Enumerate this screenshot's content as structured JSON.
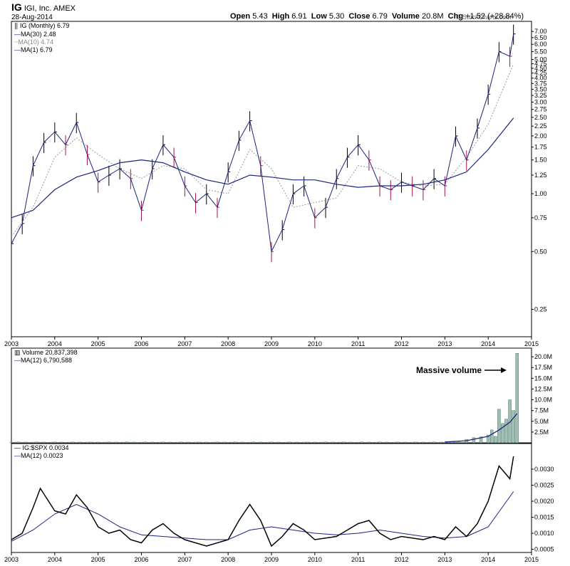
{
  "header": {
    "ticker": "IG",
    "name": "IGI, Inc.",
    "exchange": "AMEX",
    "date": "28-Aug-2014",
    "watermark": "© StockCharts.com",
    "quote": {
      "open_label": "Open",
      "open": "5.43",
      "high_label": "High",
      "high": "6.91",
      "low_label": "Low",
      "low": "5.30",
      "close_label": "Close",
      "close": "6.79",
      "volume_label": "Volume",
      "volume": "20.8M",
      "chg_label": "Chg",
      "chg": "+1.52 (+28.84%)"
    }
  },
  "colors": {
    "up": "#000000",
    "down": "#aa1144",
    "ma_blue": "#1a237e",
    "ma_gray": "#999999",
    "vol_bar": "#9fbfb2",
    "vol_edge": "#5a7a70",
    "arrow": "#000000"
  },
  "chart_data": [
    {
      "id": "price",
      "type": "line",
      "scale": "log",
      "ylim": [
        0.18,
        7.9
      ],
      "x_range": [
        "2003-01",
        "2015-01"
      ],
      "legend": [
        {
          "label": "IG (Monthly) 6.79"
        },
        {
          "label": "MA(30) 2.48"
        },
        {
          "label": "MA(10) 4.74"
        },
        {
          "label": "MA(1) 6.79"
        }
      ],
      "yticks": [
        "7.00",
        "6.50",
        "6.00",
        "5.50",
        "5.00",
        "4.75",
        "4.50",
        "4.25",
        "4.00",
        "3.75",
        "3.50",
        "3.25",
        "3.00",
        "2.75",
        "2.50",
        "2.25",
        "2.00",
        "1.75",
        "1.50",
        "1.25",
        "1.00",
        "0.75",
        "0.50",
        "0.25"
      ],
      "ytick_values": [
        7.0,
        6.5,
        6.0,
        5.5,
        5.0,
        4.75,
        4.5,
        4.25,
        4.0,
        3.75,
        3.5,
        3.25,
        3.0,
        2.75,
        2.5,
        2.25,
        2.0,
        1.75,
        1.5,
        1.25,
        1.0,
        0.75,
        0.5,
        0.25
      ],
      "xticks": [
        "2003",
        "2004",
        "2005",
        "2006",
        "2007",
        "2008",
        "2009",
        "2010",
        "2011",
        "2012",
        "2013",
        "2014",
        "2015"
      ],
      "close": [
        {
          "x": "2003-01",
          "y": 0.55
        },
        {
          "x": "2003-04",
          "y": 0.7
        },
        {
          "x": "2003-07",
          "y": 1.4
        },
        {
          "x": "2003-10",
          "y": 1.85
        },
        {
          "x": "2004-01",
          "y": 2.1
        },
        {
          "x": "2004-04",
          "y": 1.8
        },
        {
          "x": "2004-07",
          "y": 2.35
        },
        {
          "x": "2004-10",
          "y": 1.6
        },
        {
          "x": "2005-01",
          "y": 1.15
        },
        {
          "x": "2005-04",
          "y": 1.25
        },
        {
          "x": "2005-07",
          "y": 1.35
        },
        {
          "x": "2005-10",
          "y": 1.2
        },
        {
          "x": "2006-01",
          "y": 0.82
        },
        {
          "x": "2006-04",
          "y": 1.35
        },
        {
          "x": "2006-07",
          "y": 1.8
        },
        {
          "x": "2006-10",
          "y": 1.55
        },
        {
          "x": "2007-01",
          "y": 1.1
        },
        {
          "x": "2007-04",
          "y": 0.9
        },
        {
          "x": "2007-07",
          "y": 1.0
        },
        {
          "x": "2007-10",
          "y": 0.85
        },
        {
          "x": "2008-01",
          "y": 1.3
        },
        {
          "x": "2008-04",
          "y": 1.9
        },
        {
          "x": "2008-07",
          "y": 2.4
        },
        {
          "x": "2008-10",
          "y": 1.4
        },
        {
          "x": "2009-01",
          "y": 0.5
        },
        {
          "x": "2009-04",
          "y": 0.65
        },
        {
          "x": "2009-07",
          "y": 1.0
        },
        {
          "x": "2009-10",
          "y": 1.1
        },
        {
          "x": "2010-01",
          "y": 0.75
        },
        {
          "x": "2010-04",
          "y": 0.85
        },
        {
          "x": "2010-07",
          "y": 1.2
        },
        {
          "x": "2010-10",
          "y": 1.55
        },
        {
          "x": "2011-01",
          "y": 1.8
        },
        {
          "x": "2011-04",
          "y": 1.5
        },
        {
          "x": "2011-07",
          "y": 1.1
        },
        {
          "x": "2011-10",
          "y": 1.05
        },
        {
          "x": "2012-01",
          "y": 1.15
        },
        {
          "x": "2012-04",
          "y": 1.1
        },
        {
          "x": "2012-07",
          "y": 1.05
        },
        {
          "x": "2012-10",
          "y": 1.2
        },
        {
          "x": "2013-01",
          "y": 1.1
        },
        {
          "x": "2013-04",
          "y": 2.0
        },
        {
          "x": "2013-07",
          "y": 1.5
        },
        {
          "x": "2013-10",
          "y": 2.2
        },
        {
          "x": "2014-01",
          "y": 3.3
        },
        {
          "x": "2014-04",
          "y": 5.5
        },
        {
          "x": "2014-07",
          "y": 5.2
        },
        {
          "x": "2014-08",
          "y": 6.79
        }
      ],
      "ma30": [
        {
          "x": "2003-01",
          "y": 0.75
        },
        {
          "x": "2003-07",
          "y": 0.82
        },
        {
          "x": "2004-01",
          "y": 1.05
        },
        {
          "x": "2004-07",
          "y": 1.22
        },
        {
          "x": "2005-01",
          "y": 1.32
        },
        {
          "x": "2005-07",
          "y": 1.45
        },
        {
          "x": "2006-01",
          "y": 1.5
        },
        {
          "x": "2006-07",
          "y": 1.45
        },
        {
          "x": "2007-01",
          "y": 1.3
        },
        {
          "x": "2007-07",
          "y": 1.18
        },
        {
          "x": "2008-01",
          "y": 1.12
        },
        {
          "x": "2008-07",
          "y": 1.25
        },
        {
          "x": "2009-01",
          "y": 1.22
        },
        {
          "x": "2009-07",
          "y": 1.18
        },
        {
          "x": "2010-01",
          "y": 1.18
        },
        {
          "x": "2010-07",
          "y": 1.12
        },
        {
          "x": "2011-01",
          "y": 1.08
        },
        {
          "x": "2011-07",
          "y": 1.1
        },
        {
          "x": "2012-01",
          "y": 1.1
        },
        {
          "x": "2012-07",
          "y": 1.12
        },
        {
          "x": "2013-01",
          "y": 1.18
        },
        {
          "x": "2013-07",
          "y": 1.3
        },
        {
          "x": "2014-01",
          "y": 1.7
        },
        {
          "x": "2014-08",
          "y": 2.48
        }
      ],
      "ma10": [
        {
          "x": "2003-01",
          "y": 0.6
        },
        {
          "x": "2003-07",
          "y": 0.85
        },
        {
          "x": "2004-01",
          "y": 1.55
        },
        {
          "x": "2004-07",
          "y": 1.95
        },
        {
          "x": "2005-01",
          "y": 1.6
        },
        {
          "x": "2005-07",
          "y": 1.35
        },
        {
          "x": "2006-01",
          "y": 1.2
        },
        {
          "x": "2006-07",
          "y": 1.4
        },
        {
          "x": "2007-01",
          "y": 1.35
        },
        {
          "x": "2007-07",
          "y": 1.05
        },
        {
          "x": "2008-01",
          "y": 1.0
        },
        {
          "x": "2008-07",
          "y": 1.7
        },
        {
          "x": "2009-01",
          "y": 1.35
        },
        {
          "x": "2009-07",
          "y": 0.85
        },
        {
          "x": "2010-01",
          "y": 0.9
        },
        {
          "x": "2010-07",
          "y": 0.95
        },
        {
          "x": "2011-01",
          "y": 1.4
        },
        {
          "x": "2011-07",
          "y": 1.35
        },
        {
          "x": "2012-01",
          "y": 1.15
        },
        {
          "x": "2012-07",
          "y": 1.1
        },
        {
          "x": "2013-01",
          "y": 1.12
        },
        {
          "x": "2013-07",
          "y": 1.55
        },
        {
          "x": "2014-01",
          "y": 2.3
        },
        {
          "x": "2014-08",
          "y": 4.74
        }
      ]
    },
    {
      "id": "volume",
      "type": "bar",
      "legend": [
        {
          "label": "Volume 20,837,398"
        },
        {
          "label": "MA(12) 6,790,588"
        }
      ],
      "yticks": [
        "20.0M",
        "17.5M",
        "15.0M",
        "12.5M",
        "10.0M",
        "7.5M",
        "5.0M",
        "2.5M"
      ],
      "ytick_values": [
        20,
        17.5,
        15,
        12.5,
        10,
        7.5,
        5,
        2.5
      ],
      "ylim": [
        0,
        22
      ],
      "annotation": "Massive volume",
      "bars": [
        {
          "x": "2013-07",
          "y": 0.8
        },
        {
          "x": "2013-09",
          "y": 1.2
        },
        {
          "x": "2013-11",
          "y": 1.4
        },
        {
          "x": "2014-01",
          "y": 1.8
        },
        {
          "x": "2014-02",
          "y": 3.0
        },
        {
          "x": "2014-03",
          "y": 1.5
        },
        {
          "x": "2014-04",
          "y": 7.8
        },
        {
          "x": "2014-05",
          "y": 4.5
        },
        {
          "x": "2014-06",
          "y": 5.5
        },
        {
          "x": "2014-07",
          "y": 10.0
        },
        {
          "x": "2014-08",
          "y": 7.5
        },
        {
          "x": "2014-09",
          "y": 20.8
        }
      ],
      "ma12": [
        {
          "x": "2013-01",
          "y": 0.2
        },
        {
          "x": "2013-07",
          "y": 0.5
        },
        {
          "x": "2014-01",
          "y": 1.5
        },
        {
          "x": "2014-04",
          "y": 3.0
        },
        {
          "x": "2014-07",
          "y": 4.8
        },
        {
          "x": "2014-09",
          "y": 6.79
        }
      ]
    },
    {
      "id": "relative",
      "type": "line",
      "legend": [
        {
          "label": "IG:$SPX 0.0034"
        },
        {
          "label": "MA(12) 0.0023"
        }
      ],
      "yticks": [
        "0.0030",
        "0.0025",
        "0.0020",
        "0.0015",
        "0.0010",
        "0.0005"
      ],
      "ytick_values": [
        0.003,
        0.0025,
        0.002,
        0.0015,
        0.001,
        0.0005
      ],
      "ylim": [
        0.0004,
        0.0038
      ],
      "xticks": [
        "2003",
        "2004",
        "2005",
        "2006",
        "2007",
        "2008",
        "2009",
        "2010",
        "2011",
        "2012",
        "2013",
        "2014",
        "2015"
      ],
      "ratio": [
        {
          "x": "2003-01",
          "y": 0.0008
        },
        {
          "x": "2003-04",
          "y": 0.001
        },
        {
          "x": "2003-07",
          "y": 0.0018
        },
        {
          "x": "2003-09",
          "y": 0.0024
        },
        {
          "x": "2004-01",
          "y": 0.0017
        },
        {
          "x": "2004-04",
          "y": 0.0016
        },
        {
          "x": "2004-07",
          "y": 0.0022
        },
        {
          "x": "2004-10",
          "y": 0.0018
        },
        {
          "x": "2005-01",
          "y": 0.0012
        },
        {
          "x": "2005-04",
          "y": 0.001
        },
        {
          "x": "2005-07",
          "y": 0.0011
        },
        {
          "x": "2005-10",
          "y": 0.0008
        },
        {
          "x": "2006-01",
          "y": 0.0007
        },
        {
          "x": "2006-04",
          "y": 0.0011
        },
        {
          "x": "2006-07",
          "y": 0.0013
        },
        {
          "x": "2006-10",
          "y": 0.001
        },
        {
          "x": "2007-01",
          "y": 0.0008
        },
        {
          "x": "2007-07",
          "y": 0.0006
        },
        {
          "x": "2008-01",
          "y": 0.0008
        },
        {
          "x": "2008-04",
          "y": 0.0014
        },
        {
          "x": "2008-07",
          "y": 0.0019
        },
        {
          "x": "2008-10",
          "y": 0.0014
        },
        {
          "x": "2009-01",
          "y": 0.0006
        },
        {
          "x": "2009-04",
          "y": 0.0009
        },
        {
          "x": "2009-07",
          "y": 0.0013
        },
        {
          "x": "2009-10",
          "y": 0.0011
        },
        {
          "x": "2010-01",
          "y": 0.0008
        },
        {
          "x": "2010-07",
          "y": 0.0009
        },
        {
          "x": "2010-10",
          "y": 0.0011
        },
        {
          "x": "2011-01",
          "y": 0.0013
        },
        {
          "x": "2011-04",
          "y": 0.0014
        },
        {
          "x": "2011-07",
          "y": 0.001
        },
        {
          "x": "2011-10",
          "y": 0.0008
        },
        {
          "x": "2012-01",
          "y": 0.0009
        },
        {
          "x": "2012-07",
          "y": 0.0008
        },
        {
          "x": "2012-10",
          "y": 0.0009
        },
        {
          "x": "2013-01",
          "y": 0.0008
        },
        {
          "x": "2013-04",
          "y": 0.0012
        },
        {
          "x": "2013-07",
          "y": 0.0009
        },
        {
          "x": "2013-10",
          "y": 0.0013
        },
        {
          "x": "2014-01",
          "y": 0.002
        },
        {
          "x": "2014-04",
          "y": 0.0031
        },
        {
          "x": "2014-07",
          "y": 0.0027
        },
        {
          "x": "2014-08",
          "y": 0.0034
        }
      ],
      "ma12": [
        {
          "x": "2003-01",
          "y": 0.00075
        },
        {
          "x": "2003-07",
          "y": 0.0011
        },
        {
          "x": "2004-01",
          "y": 0.0016
        },
        {
          "x": "2004-07",
          "y": 0.0019
        },
        {
          "x": "2005-01",
          "y": 0.0016
        },
        {
          "x": "2005-07",
          "y": 0.0012
        },
        {
          "x": "2006-01",
          "y": 0.00095
        },
        {
          "x": "2006-07",
          "y": 0.0009
        },
        {
          "x": "2007-01",
          "y": 0.00085
        },
        {
          "x": "2007-07",
          "y": 0.0008
        },
        {
          "x": "2008-01",
          "y": 0.0008
        },
        {
          "x": "2008-07",
          "y": 0.0011
        },
        {
          "x": "2009-01",
          "y": 0.0012
        },
        {
          "x": "2009-07",
          "y": 0.0011
        },
        {
          "x": "2010-01",
          "y": 0.001
        },
        {
          "x": "2010-07",
          "y": 0.00095
        },
        {
          "x": "2011-01",
          "y": 0.001
        },
        {
          "x": "2011-07",
          "y": 0.0011
        },
        {
          "x": "2012-01",
          "y": 0.001
        },
        {
          "x": "2012-07",
          "y": 0.0009
        },
        {
          "x": "2013-01",
          "y": 0.00085
        },
        {
          "x": "2013-07",
          "y": 0.0009
        },
        {
          "x": "2014-01",
          "y": 0.0012
        },
        {
          "x": "2014-08",
          "y": 0.0023
        }
      ]
    }
  ]
}
